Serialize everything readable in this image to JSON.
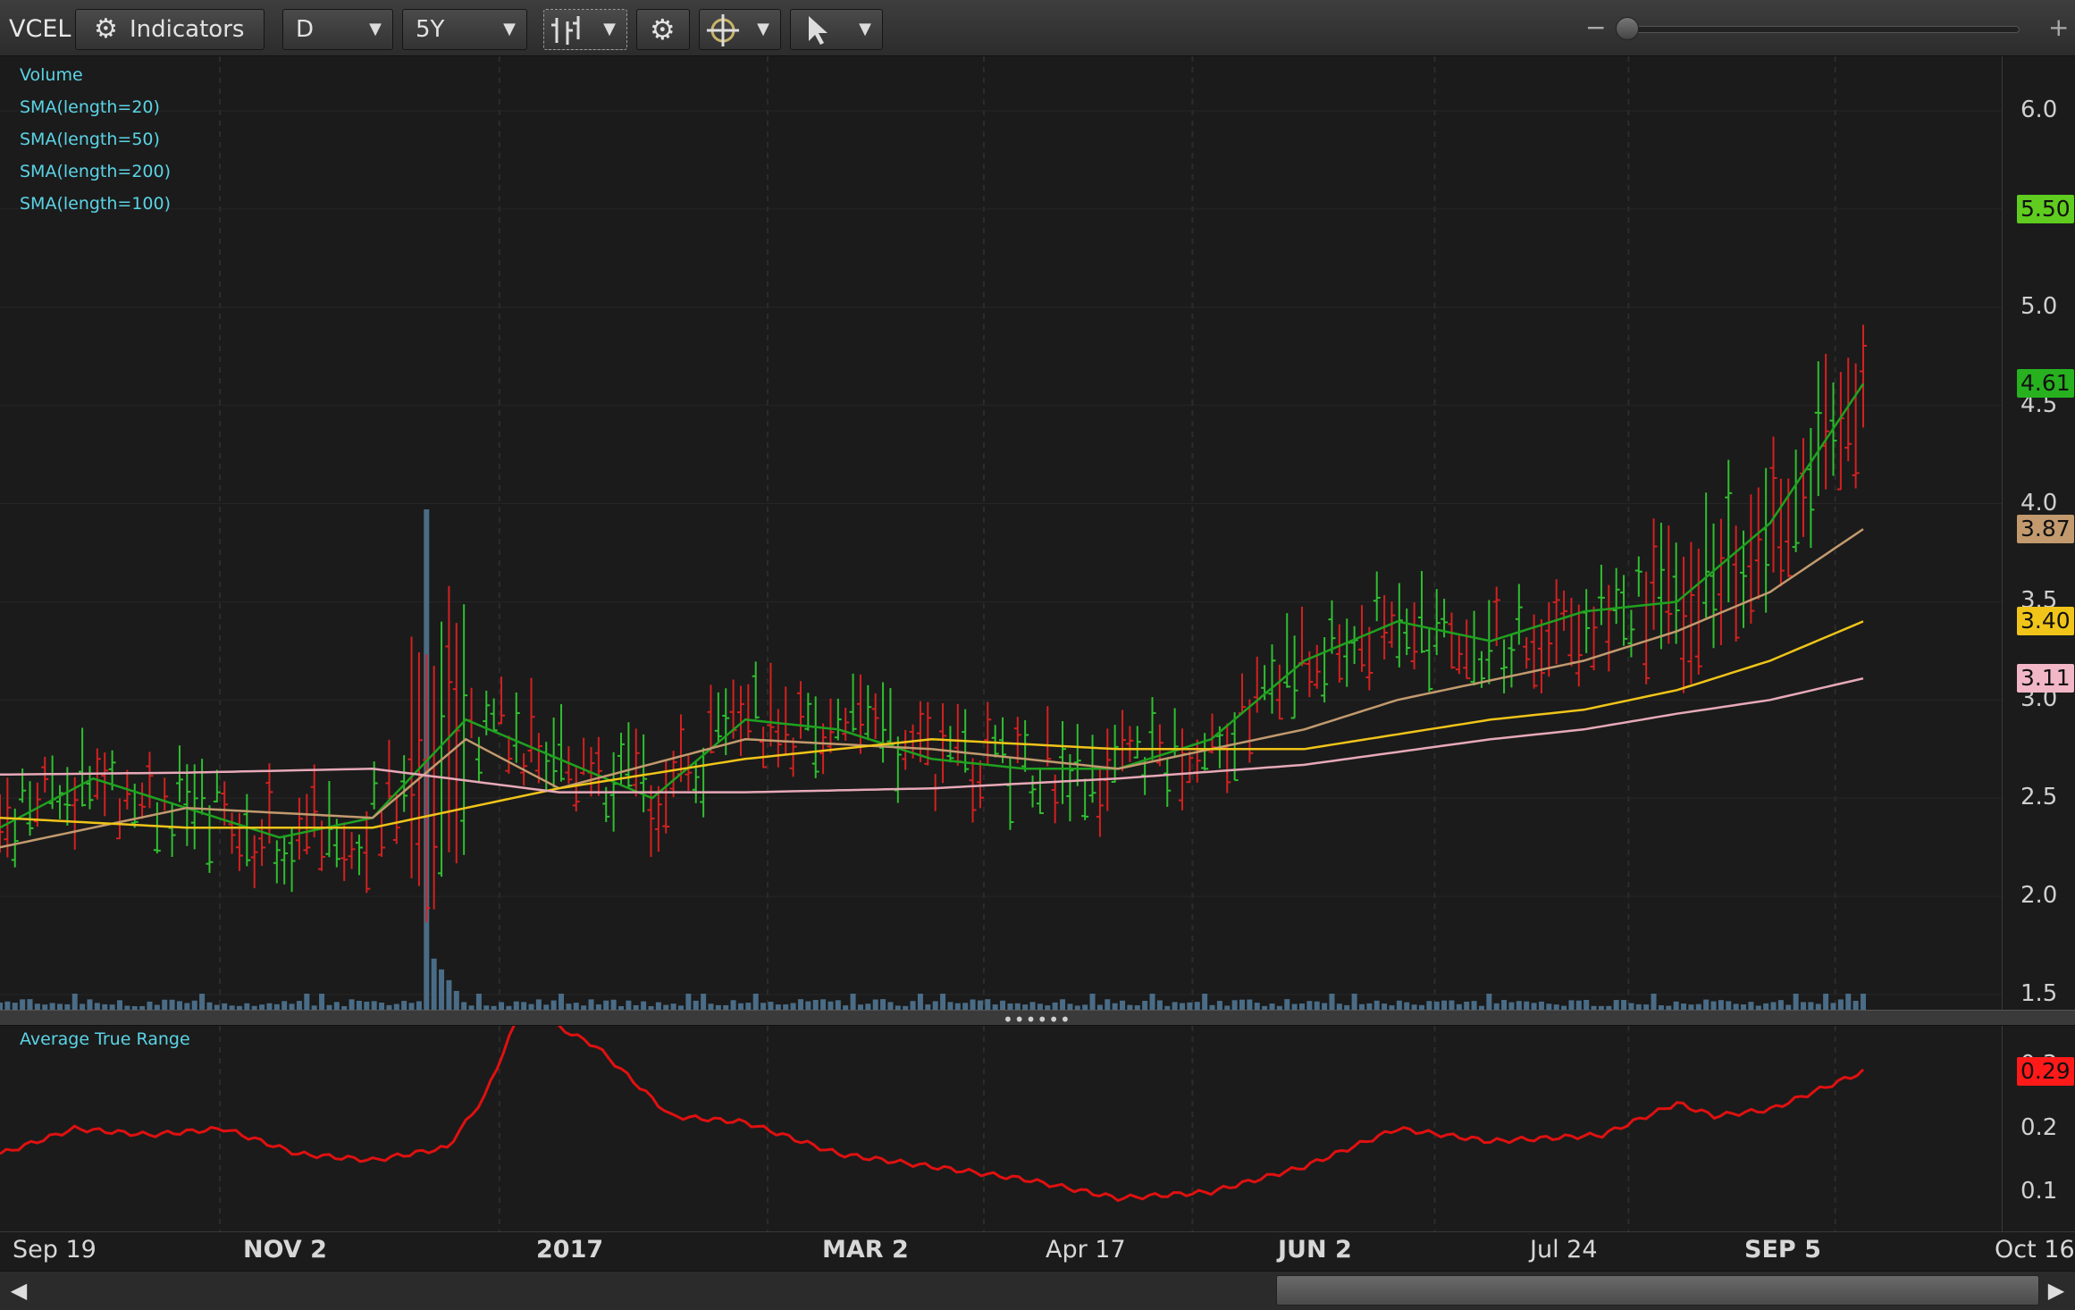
{
  "toolbar": {
    "symbol": "VCEL",
    "indicators_label": "Indicators",
    "aggregation": "D",
    "timeframe": "5Y"
  },
  "legend": [
    "Volume",
    "SMA(length=20)",
    "SMA(length=50)",
    "SMA(length=200)",
    "SMA(length=100)"
  ],
  "price_axis": {
    "ticks": [
      "6.0",
      "5.5",
      "5.0",
      "4.5",
      "4.0",
      "3.5",
      "3.0",
      "2.5",
      "2.0",
      "1.5"
    ],
    "badges": [
      {
        "value": "5.50",
        "color": "#5fcc1f"
      },
      {
        "value": "4.61",
        "color": "#27b11f"
      },
      {
        "value": "3.87",
        "color": "#c29a6e"
      },
      {
        "value": "3.40",
        "color": "#f0c419"
      },
      {
        "value": "3.11",
        "color": "#f2b7c7"
      }
    ]
  },
  "atr": {
    "label": "Average True Range",
    "ticks": [
      "0.3",
      "0.2",
      "0.1"
    ],
    "badge": {
      "value": "0.29",
      "color": "#ff1a1a"
    }
  },
  "x_axis": [
    {
      "label": "Sep 19",
      "bold": false
    },
    {
      "label": "NOV 2",
      "bold": true
    },
    {
      "label": "2017",
      "bold": true
    },
    {
      "label": "MAR 2",
      "bold": true
    },
    {
      "label": "Apr 17",
      "bold": false
    },
    {
      "label": "JUN 2",
      "bold": true
    },
    {
      "label": "Jul 24",
      "bold": false
    },
    {
      "label": "SEP 5",
      "bold": true
    },
    {
      "label": "Oct 16",
      "bold": false
    }
  ],
  "chart_data": {
    "type": "line",
    "series": [
      {
        "name": "SMA(length=20)",
        "color": "#1fa21f",
        "x": [
          0,
          0.05,
          0.1,
          0.15,
          0.2,
          0.25,
          0.3,
          0.35,
          0.4,
          0.45,
          0.5,
          0.55,
          0.6,
          0.65,
          0.7,
          0.75,
          0.8,
          0.85,
          0.9,
          0.95,
          1.0
        ],
        "values": [
          2.35,
          2.6,
          2.45,
          2.3,
          2.4,
          2.9,
          2.7,
          2.5,
          2.9,
          2.85,
          2.7,
          2.65,
          2.65,
          2.8,
          3.2,
          3.4,
          3.3,
          3.45,
          3.5,
          3.9,
          4.61
        ]
      },
      {
        "name": "SMA(length=50)",
        "color": "#c29a6e",
        "x": [
          0,
          0.1,
          0.2,
          0.25,
          0.3,
          0.4,
          0.5,
          0.6,
          0.7,
          0.75,
          0.8,
          0.85,
          0.9,
          0.95,
          1.0
        ],
        "values": [
          2.25,
          2.45,
          2.4,
          2.8,
          2.55,
          2.8,
          2.75,
          2.65,
          2.85,
          3.0,
          3.1,
          3.2,
          3.35,
          3.55,
          3.87
        ]
      },
      {
        "name": "SMA(length=100)",
        "color": "#f0c419",
        "x": [
          0,
          0.1,
          0.2,
          0.3,
          0.4,
          0.5,
          0.6,
          0.7,
          0.8,
          0.85,
          0.9,
          0.95,
          1.0
        ],
        "values": [
          2.4,
          2.35,
          2.35,
          2.55,
          2.7,
          2.8,
          2.75,
          2.75,
          2.9,
          2.95,
          3.05,
          3.2,
          3.4
        ]
      },
      {
        "name": "SMA(length=200)",
        "color": "#e7a9b8",
        "x": [
          0,
          0.1,
          0.2,
          0.3,
          0.4,
          0.5,
          0.6,
          0.7,
          0.8,
          0.85,
          0.9,
          0.95,
          1.0
        ],
        "values": [
          2.62,
          2.63,
          2.65,
          2.53,
          2.53,
          2.55,
          2.6,
          2.67,
          2.8,
          2.85,
          2.93,
          3.0,
          3.11
        ]
      },
      {
        "name": "Average True Range",
        "color": "#e01010",
        "x": [
          0,
          0.04,
          0.08,
          0.12,
          0.16,
          0.2,
          0.24,
          0.26,
          0.28,
          0.32,
          0.36,
          0.4,
          0.45,
          0.5,
          0.55,
          0.6,
          0.65,
          0.7,
          0.75,
          0.8,
          0.86,
          0.9,
          0.92,
          0.95,
          1.0
        ],
        "values": [
          0.16,
          0.2,
          0.19,
          0.2,
          0.16,
          0.15,
          0.17,
          0.25,
          0.39,
          0.33,
          0.22,
          0.21,
          0.16,
          0.14,
          0.12,
          0.09,
          0.1,
          0.14,
          0.2,
          0.18,
          0.19,
          0.24,
          0.22,
          0.23,
          0.29
        ]
      }
    ]
  }
}
